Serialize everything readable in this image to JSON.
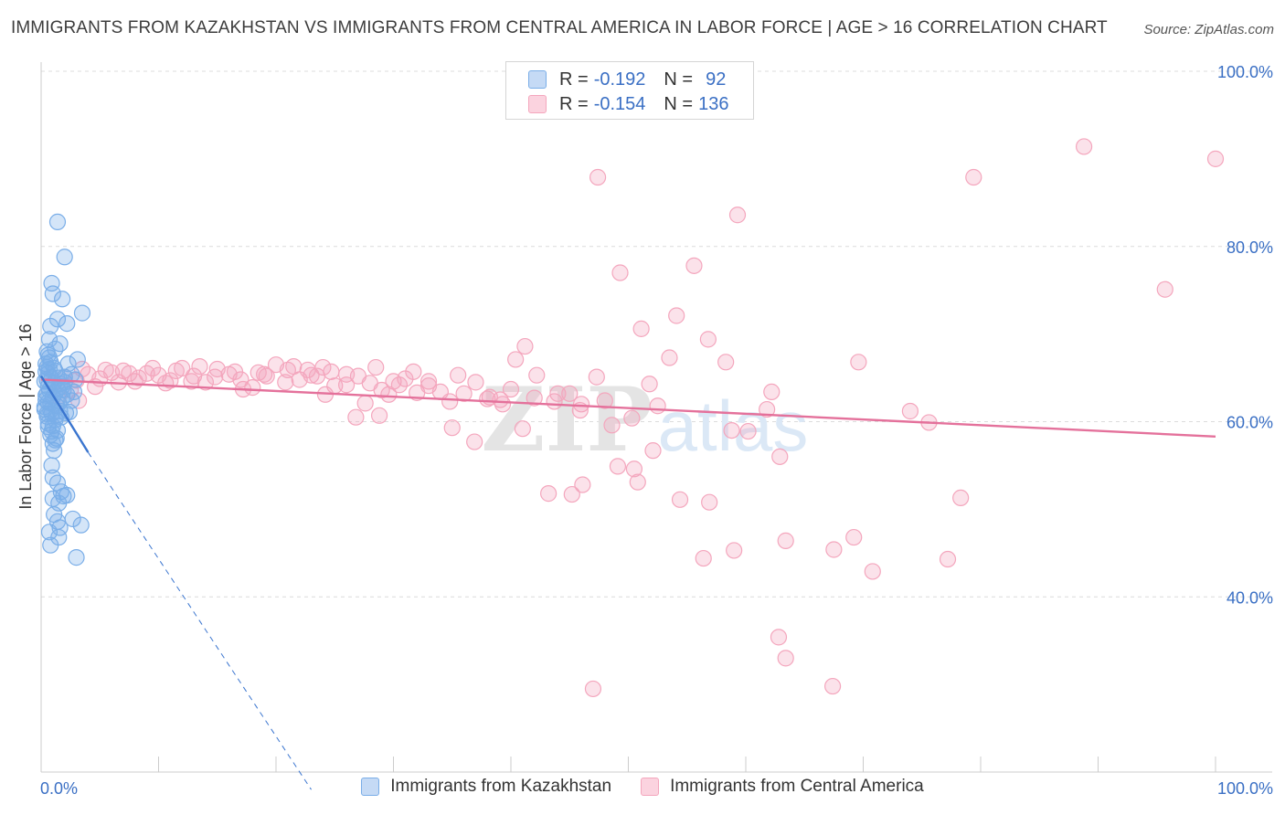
{
  "title": "IMMIGRANTS FROM KAZAKHSTAN VS IMMIGRANTS FROM CENTRAL AMERICA IN LABOR FORCE | AGE > 16 CORRELATION CHART",
  "source": "Source: ZipAtlas.com",
  "watermark": {
    "zip": "ZIP",
    "atlas": "atlas"
  },
  "legend": {
    "series": [
      {
        "r_label": "R =",
        "r_value": "-0.192",
        "n_label": "N =",
        "n_value": "92"
      },
      {
        "r_label": "R =",
        "r_value": "-0.154",
        "n_label": "N =",
        "n_value": "136"
      }
    ]
  },
  "chart_data": {
    "type": "scatter",
    "ylabel": "In Labor Force | Age > 16",
    "xlabel": "",
    "xlim": [
      0,
      100
    ],
    "ylim": [
      20,
      100
    ],
    "x_tick_labels": [
      "0.0%",
      "100.0%"
    ],
    "y_ticks": [
      40,
      60,
      80,
      100
    ],
    "y_tick_labels": [
      "40.0%",
      "60.0%",
      "80.0%",
      "100.0%"
    ],
    "grid": true,
    "legend_position": "top-center and bottom",
    "series": [
      {
        "name": "Immigrants from Kazakhstan",
        "color": "#7aaee8",
        "line_color": "#3a75cf",
        "trend": {
          "x": [
            0.0,
            4.0
          ],
          "y": [
            65.2,
            56.5
          ],
          "dashed_extension_to": [
            23.0,
            18.0
          ]
        },
        "points": [
          [
            1.4,
            82.8
          ],
          [
            2.0,
            78.8
          ],
          [
            0.9,
            75.8
          ],
          [
            1.8,
            74.0
          ],
          [
            1.0,
            74.6
          ],
          [
            3.5,
            72.4
          ],
          [
            1.4,
            71.7
          ],
          [
            2.2,
            71.2
          ],
          [
            0.8,
            70.9
          ],
          [
            0.7,
            69.4
          ],
          [
            1.6,
            68.9
          ],
          [
            1.2,
            68.3
          ],
          [
            3.1,
            67.1
          ],
          [
            0.7,
            67.3
          ],
          [
            0.8,
            66.8
          ],
          [
            0.5,
            66.2
          ],
          [
            2.3,
            66.6
          ],
          [
            1.2,
            65.8
          ],
          [
            0.6,
            65.5
          ],
          [
            1.5,
            65.0
          ],
          [
            0.9,
            64.9
          ],
          [
            2.6,
            65.4
          ],
          [
            0.3,
            64.6
          ],
          [
            1.1,
            64.4
          ],
          [
            2.0,
            64.5
          ],
          [
            0.6,
            64.0
          ],
          [
            1.4,
            63.7
          ],
          [
            2.8,
            63.4
          ],
          [
            0.5,
            63.2
          ],
          [
            1.0,
            62.8
          ],
          [
            0.4,
            62.5
          ],
          [
            1.8,
            62.7
          ],
          [
            2.6,
            62.4
          ],
          [
            0.8,
            62.1
          ],
          [
            1.3,
            61.8
          ],
          [
            0.3,
            61.4
          ],
          [
            1.6,
            61.2
          ],
          [
            0.9,
            60.9
          ],
          [
            2.1,
            61.0
          ],
          [
            0.5,
            60.6
          ],
          [
            1.2,
            60.2
          ],
          [
            1.7,
            60.5
          ],
          [
            0.6,
            59.8
          ],
          [
            1.0,
            59.5
          ],
          [
            1.4,
            59.0
          ],
          [
            0.8,
            58.5
          ],
          [
            1.3,
            58.1
          ],
          [
            1.0,
            57.5
          ],
          [
            1.1,
            56.7
          ],
          [
            0.9,
            55.0
          ],
          [
            1.0,
            53.6
          ],
          [
            1.4,
            53.0
          ],
          [
            1.7,
            52.0
          ],
          [
            2.2,
            51.6
          ],
          [
            1.9,
            51.5
          ],
          [
            1.0,
            51.2
          ],
          [
            1.5,
            50.7
          ],
          [
            1.1,
            49.4
          ],
          [
            1.4,
            48.6
          ],
          [
            2.7,
            48.9
          ],
          [
            1.6,
            47.9
          ],
          [
            3.4,
            48.2
          ],
          [
            0.7,
            47.4
          ],
          [
            1.5,
            46.8
          ],
          [
            0.8,
            45.9
          ],
          [
            3.0,
            44.5
          ],
          [
            0.4,
            65.7
          ],
          [
            0.5,
            64.8
          ],
          [
            0.7,
            63.6
          ],
          [
            0.4,
            63.0
          ],
          [
            0.6,
            62.2
          ],
          [
            0.3,
            61.7
          ],
          [
            0.5,
            60.9
          ],
          [
            0.7,
            66.0
          ],
          [
            0.4,
            66.6
          ],
          [
            0.6,
            67.6
          ],
          [
            1.8,
            64.0
          ],
          [
            2.2,
            63.1
          ],
          [
            1.5,
            62.1
          ],
          [
            2.4,
            61.1
          ],
          [
            0.9,
            58.9
          ],
          [
            1.2,
            57.9
          ],
          [
            1.1,
            66.1
          ],
          [
            2.0,
            65.1
          ],
          [
            1.3,
            60.7
          ],
          [
            0.8,
            61.3
          ],
          [
            1.9,
            63.6
          ],
          [
            0.5,
            68.0
          ],
          [
            1.6,
            64.3
          ],
          [
            2.9,
            64.8
          ],
          [
            0.6,
            59.4
          ],
          [
            1.2,
            63.3
          ]
        ]
      },
      {
        "name": "Immigrants from Central America",
        "color": "#f4a6bd",
        "line_color": "#e4719b",
        "trend": {
          "x": [
            0.0,
            100.0
          ],
          "y": [
            64.8,
            58.3
          ]
        },
        "points": [
          [
            88.8,
            91.4
          ],
          [
            100.0,
            90.0
          ],
          [
            47.4,
            87.9
          ],
          [
            79.4,
            87.9
          ],
          [
            59.3,
            83.6
          ],
          [
            49.3,
            77.0
          ],
          [
            55.6,
            77.8
          ],
          [
            95.7,
            75.1
          ],
          [
            54.1,
            72.1
          ],
          [
            51.1,
            70.6
          ],
          [
            56.8,
            69.4
          ],
          [
            41.2,
            68.6
          ],
          [
            53.5,
            67.3
          ],
          [
            40.4,
            67.1
          ],
          [
            58.3,
            66.8
          ],
          [
            69.6,
            66.8
          ],
          [
            24.7,
            65.7
          ],
          [
            31.7,
            65.7
          ],
          [
            35.5,
            65.3
          ],
          [
            47.3,
            65.1
          ],
          [
            42.2,
            65.3
          ],
          [
            51.8,
            64.3
          ],
          [
            45.0,
            63.2
          ],
          [
            62.2,
            63.4
          ],
          [
            39.1,
            62.5
          ],
          [
            43.7,
            62.3
          ],
          [
            39.3,
            62.0
          ],
          [
            46.0,
            62.0
          ],
          [
            61.8,
            61.4
          ],
          [
            45.9,
            61.3
          ],
          [
            26.8,
            60.5
          ],
          [
            28.8,
            60.7
          ],
          [
            50.3,
            60.4
          ],
          [
            74.0,
            61.2
          ],
          [
            75.6,
            59.9
          ],
          [
            35.0,
            59.3
          ],
          [
            41.0,
            59.2
          ],
          [
            48.6,
            59.6
          ],
          [
            58.8,
            59.0
          ],
          [
            60.2,
            58.9
          ],
          [
            36.9,
            57.7
          ],
          [
            52.1,
            56.7
          ],
          [
            62.9,
            56.0
          ],
          [
            49.1,
            54.9
          ],
          [
            50.5,
            54.6
          ],
          [
            50.8,
            53.1
          ],
          [
            46.1,
            52.8
          ],
          [
            43.2,
            51.8
          ],
          [
            45.2,
            51.7
          ],
          [
            54.4,
            51.1
          ],
          [
            56.9,
            50.8
          ],
          [
            78.3,
            51.3
          ],
          [
            63.4,
            46.4
          ],
          [
            67.5,
            45.4
          ],
          [
            69.2,
            46.8
          ],
          [
            59.0,
            45.3
          ],
          [
            56.4,
            44.4
          ],
          [
            70.8,
            42.9
          ],
          [
            77.2,
            44.3
          ],
          [
            62.8,
            35.4
          ],
          [
            63.4,
            33.0
          ],
          [
            67.4,
            29.8
          ],
          [
            47.0,
            29.5
          ],
          [
            2.0,
            65.1
          ],
          [
            3.0,
            64.7
          ],
          [
            4.0,
            65.4
          ],
          [
            5.0,
            64.9
          ],
          [
            6.0,
            65.6
          ],
          [
            7.0,
            65.8
          ],
          [
            8.0,
            64.6
          ],
          [
            9.0,
            65.5
          ],
          [
            10.0,
            65.3
          ],
          [
            11.0,
            64.7
          ],
          [
            12.0,
            66.1
          ],
          [
            13.0,
            65.2
          ],
          [
            14.0,
            64.5
          ],
          [
            15.0,
            66.0
          ],
          [
            16.0,
            65.4
          ],
          [
            17.0,
            64.8
          ],
          [
            18.0,
            63.9
          ],
          [
            19.0,
            65.4
          ],
          [
            20.0,
            66.5
          ],
          [
            21.0,
            65.9
          ],
          [
            22.0,
            64.8
          ],
          [
            23.0,
            65.3
          ],
          [
            24.0,
            66.2
          ],
          [
            25.0,
            64.1
          ],
          [
            26.0,
            64.2
          ],
          [
            27.0,
            65.2
          ],
          [
            28.0,
            64.4
          ],
          [
            29.0,
            63.6
          ],
          [
            30.0,
            64.6
          ],
          [
            31.0,
            64.9
          ],
          [
            32.0,
            63.3
          ],
          [
            33.0,
            64.1
          ],
          [
            34.0,
            63.4
          ],
          [
            36.0,
            63.2
          ],
          [
            37.0,
            64.5
          ],
          [
            38.0,
            62.6
          ],
          [
            40.0,
            63.7
          ],
          [
            42.0,
            62.7
          ],
          [
            44.0,
            63.2
          ],
          [
            3.5,
            66.0
          ],
          [
            5.5,
            65.9
          ],
          [
            7.5,
            65.5
          ],
          [
            9.5,
            66.1
          ],
          [
            11.5,
            65.8
          ],
          [
            13.5,
            66.3
          ],
          [
            16.5,
            65.7
          ],
          [
            18.5,
            65.6
          ],
          [
            21.5,
            66.3
          ],
          [
            23.5,
            65.2
          ],
          [
            26.0,
            65.4
          ],
          [
            28.5,
            66.2
          ],
          [
            30.5,
            64.2
          ],
          [
            33.0,
            64.6
          ],
          [
            2.5,
            63.6
          ],
          [
            1.5,
            62.9
          ],
          [
            3.2,
            62.4
          ],
          [
            4.6,
            64.0
          ],
          [
            12.8,
            64.6
          ],
          [
            17.2,
            63.7
          ],
          [
            20.8,
            64.5
          ],
          [
            24.2,
            63.1
          ],
          [
            29.6,
            63.1
          ],
          [
            34.8,
            62.3
          ],
          [
            38.2,
            62.8
          ],
          [
            27.6,
            62.1
          ],
          [
            48.0,
            62.4
          ],
          [
            52.5,
            61.8
          ],
          [
            19.2,
            65.2
          ],
          [
            14.8,
            65.1
          ],
          [
            10.6,
            64.4
          ],
          [
            8.3,
            65.0
          ],
          [
            6.6,
            64.5
          ],
          [
            22.7,
            65.9
          ]
        ]
      }
    ]
  }
}
